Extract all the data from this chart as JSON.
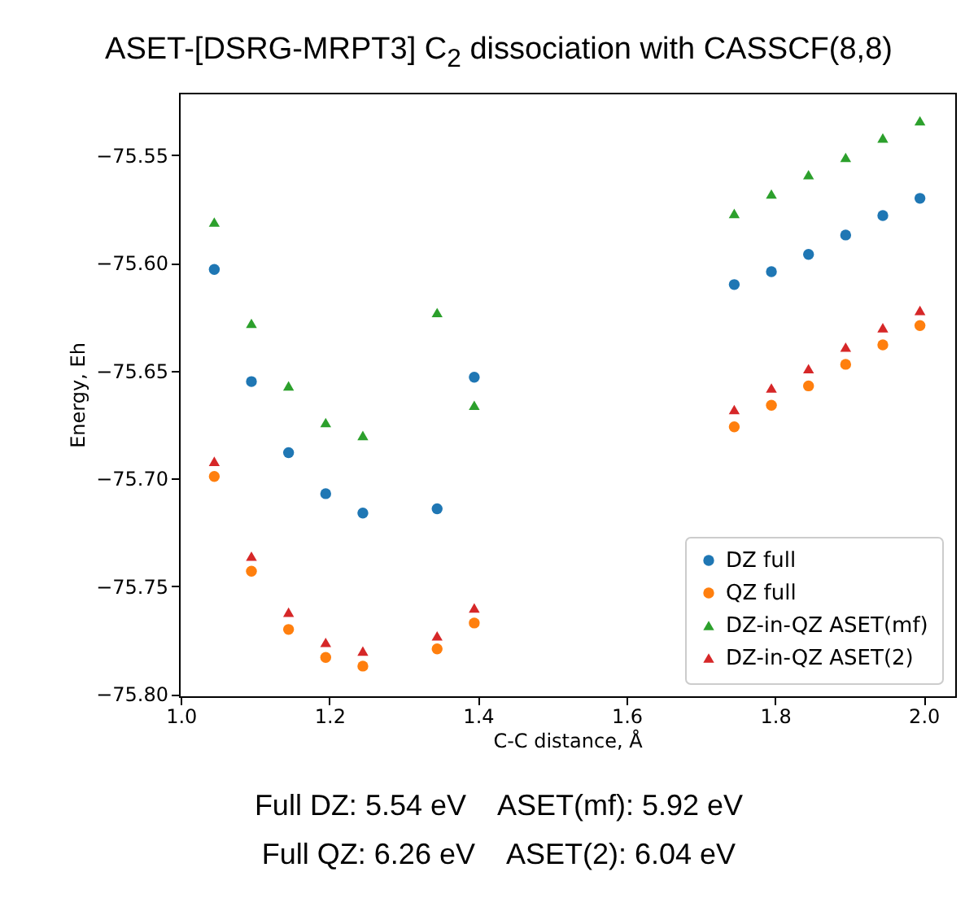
{
  "chart_data": {
    "type": "scatter",
    "title": "ASET-[DSRG-MRPT3] C$_{2}$ dissociation with CASSCF(8,8)",
    "xlabel": "C-C distance, Å",
    "ylabel": "Energy, Eh",
    "x": [
      1.045,
      1.095,
      1.145,
      1.195,
      1.245,
      1.345,
      1.395,
      1.745,
      1.795,
      1.845,
      1.895,
      1.945,
      1.995
    ],
    "series": [
      {
        "name": "DZ full",
        "color": "#1f77b4",
        "marker": "circle",
        "values": [
          -75.603,
          -75.655,
          -75.688,
          -75.707,
          -75.716,
          -75.714,
          -75.653,
          -75.61,
          -75.604,
          -75.596,
          -75.587,
          -75.578,
          -75.57
        ]
      },
      {
        "name": "QZ full",
        "color": "#ff7f0e",
        "marker": "circle",
        "values": [
          -75.699,
          -75.743,
          -75.77,
          -75.783,
          -75.787,
          -75.779,
          -75.767,
          -75.676,
          -75.666,
          -75.657,
          -75.647,
          -75.638,
          -75.629
        ]
      },
      {
        "name": "DZ-in-QZ ASET(mf)",
        "color": "#2ca02c",
        "marker": "triangle",
        "values": [
          -75.581,
          -75.628,
          -75.657,
          -75.674,
          -75.68,
          -75.623,
          -75.666,
          -75.577,
          -75.568,
          -75.559,
          -75.551,
          -75.542,
          -75.534
        ]
      },
      {
        "name": "DZ-in-QZ ASET(2)",
        "color": "#d62728",
        "marker": "triangle",
        "values": [
          -75.692,
          -75.736,
          -75.762,
          -75.776,
          -75.78,
          -75.773,
          -75.76,
          -75.668,
          -75.658,
          -75.649,
          -75.639,
          -75.63,
          -75.622
        ]
      }
    ],
    "xlim": [
      0.9975,
      2.0425
    ],
    "xticks": [
      {
        "value": 1.0,
        "label": "1.0"
      },
      {
        "value": 1.2,
        "label": "1.2"
      },
      {
        "value": 1.4,
        "label": "1.4"
      },
      {
        "value": 1.6,
        "label": "1.6"
      },
      {
        "value": 1.8,
        "label": "1.8"
      },
      {
        "value": 2.0,
        "label": "2.0"
      }
    ],
    "ylim": [
      -75.801,
      -75.521
    ],
    "yticks": [
      {
        "value": -75.8,
        "label": "−75.80"
      },
      {
        "value": -75.75,
        "label": "−75.75"
      },
      {
        "value": -75.7,
        "label": "−75.70"
      },
      {
        "value": -75.65,
        "label": "−75.65"
      },
      {
        "value": -75.6,
        "label": "−75.60"
      },
      {
        "value": -75.55,
        "label": "−75.55"
      }
    ],
    "grid": false,
    "legend": "bottom right",
    "annotations": [
      "Full DZ: 5.54 eV    ASET(mf): 5.92 eV",
      "Full QZ: 6.26 eV    ASET(2): 6.04 eV"
    ]
  }
}
